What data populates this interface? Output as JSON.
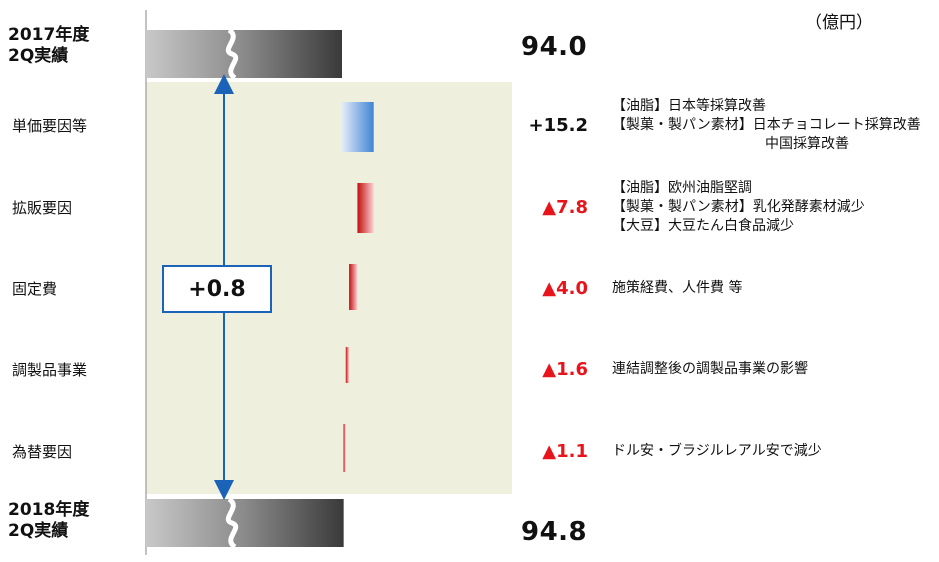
{
  "unit": "（億円）",
  "start": {
    "label_line1": "2017年度",
    "label_line2": "2Q実績",
    "value": "94.0"
  },
  "end": {
    "label_line1": "2018年度",
    "label_line2": "2Q実績",
    "value": "94.8"
  },
  "total_change": "+0.8",
  "rows": [
    {
      "label": "単価要因等",
      "delta": "+15.2",
      "notes": [
        "【油脂】日本等採算改善",
        "【製菓・製パン素材】日本チョコレート採算改善",
        "中国採算改善"
      ]
    },
    {
      "label": "拡販要因",
      "delta": "▲7.8",
      "notes": [
        "【油脂】欧州油脂堅調",
        "【製菓・製パン素材】乳化発酵素材減少",
        "【大豆】大豆たん白食品減少"
      ]
    },
    {
      "label": "固定費",
      "delta": "▲4.0",
      "notes": [
        "施策経費、人件費 等"
      ]
    },
    {
      "label": "調製品事業",
      "delta": "▲1.6",
      "notes": [
        "連結調整後の調製品事業の影響"
      ]
    },
    {
      "label": "為替要因",
      "delta": "▲1.1",
      "notes": [
        "ドル安・ブラジルレアル安で減少"
      ]
    }
  ],
  "colors": {
    "positive": "#4a8ad8",
    "negative": "#c91a1a",
    "panel": "#eef0dd",
    "arrow": "#1a63b8"
  },
  "chart_data": {
    "type": "bar",
    "subtype": "waterfall",
    "unit": "（億円）",
    "categories": [
      "2017年度2Q実績",
      "単価要因等",
      "拡販要因",
      "固定費",
      "調製品事業",
      "為替要因",
      "2018年度2Q実績"
    ],
    "values": [
      94.0,
      15.2,
      -7.8,
      -4.0,
      -1.6,
      -1.1,
      94.8
    ],
    "total_change": 0.8
  }
}
